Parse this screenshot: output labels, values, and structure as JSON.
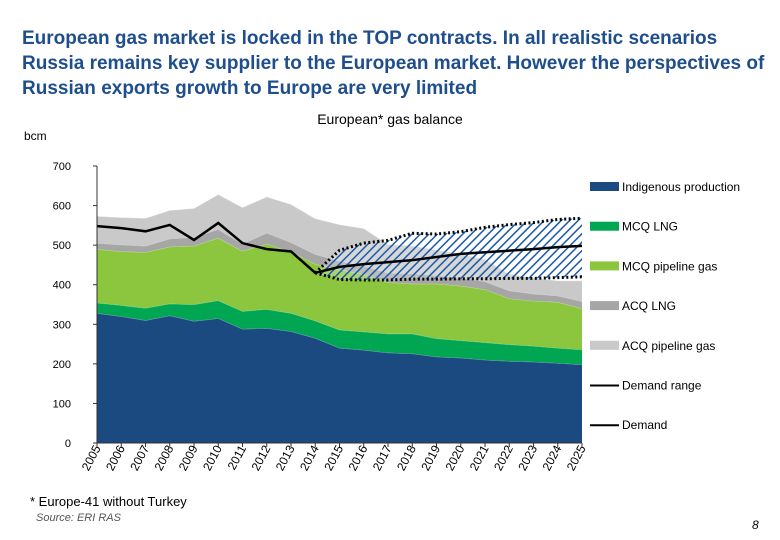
{
  "slide": {
    "headline": "European gas market is locked in the TOP contracts. In all realistic scenarios Russia remains key supplier to the European market. However the perspectives of Russian exports growth to Europe are very limited",
    "footnote": "* Europe-41 without Turkey",
    "source": "Source: ERI RAS",
    "page_number": "8"
  },
  "chart_data": {
    "type": "area",
    "title": "European* gas balance",
    "ylabel": "bcm",
    "ylim": [
      0,
      700
    ],
    "yticks": [
      0,
      100,
      200,
      300,
      400,
      500,
      600,
      700
    ],
    "categories": [
      "2005",
      "2006",
      "2007",
      "2008",
      "2009",
      "2010",
      "2011",
      "2012",
      "2013",
      "2014",
      "2015",
      "2016",
      "2017",
      "2018",
      "2019",
      "2020",
      "2021",
      "2022",
      "2023",
      "2024",
      "2025"
    ],
    "colors": {
      "indigenous": "#1a4a80",
      "mcq_lng": "#00a651",
      "mcq_pipe": "#8cc63f",
      "acq_lng": "#a6a6a6",
      "acq_pipe": "#c9c9c9",
      "hatch": "#1a5aa8"
    },
    "series": [
      {
        "key": "indigenous",
        "name": "Indigenous production",
        "values": [
          328,
          320,
          310,
          322,
          308,
          315,
          288,
          290,
          282,
          265,
          240,
          235,
          228,
          226,
          218,
          215,
          210,
          207,
          205,
          202,
          198
        ]
      },
      {
        "key": "mcq_lng",
        "name": "MCQ LNG",
        "values": [
          26,
          28,
          31,
          30,
          42,
          45,
          45,
          48,
          46,
          44,
          46,
          46,
          48,
          50,
          46,
          44,
          44,
          42,
          40,
          38,
          38
        ]
      },
      {
        "key": "mcq_pipe",
        "name": "MCQ pipeline gas",
        "values": [
          136,
          136,
          141,
          144,
          148,
          158,
          152,
          165,
          155,
          143,
          152,
          145,
          130,
          126,
          138,
          138,
          134,
          116,
          114,
          116,
          104
        ]
      },
      {
        "key": "acq_lng",
        "name": "ACQ LNG",
        "values": [
          15,
          17,
          16,
          20,
          22,
          22,
          18,
          28,
          24,
          25,
          22,
          22,
          24,
          26,
          22,
          20,
          20,
          20,
          18,
          16,
          18
        ]
      },
      {
        "key": "acq_pipe",
        "name": "ACQ pipeline gas",
        "values": [
          68,
          69,
          70,
          72,
          73,
          88,
          92,
          91,
          96,
          90,
          92,
          94,
          72,
          70,
          64,
          60,
          56,
          42,
          40,
          38,
          52
        ]
      }
    ],
    "demand": {
      "name": "Demand",
      "values": [
        548,
        543,
        535,
        551,
        513,
        556,
        505,
        490,
        484,
        430,
        445,
        452,
        457,
        462,
        470,
        478,
        482,
        486,
        490,
        495,
        498
      ]
    },
    "demand_range": {
      "name": "Demand range",
      "start_index": 9,
      "upper": [
        430,
        487,
        505,
        512,
        530,
        528,
        534,
        545,
        552,
        557,
        565,
        568
      ],
      "lower": [
        430,
        413,
        412,
        412,
        414,
        414,
        415,
        415,
        416,
        416,
        418,
        420
      ]
    },
    "legend": [
      "Indigenous production",
      "MCQ LNG",
      "MCQ pipeline gas",
      "ACQ LNG",
      "ACQ pipeline gas",
      "Demand range",
      "Demand"
    ],
    "legend_position": "right"
  }
}
